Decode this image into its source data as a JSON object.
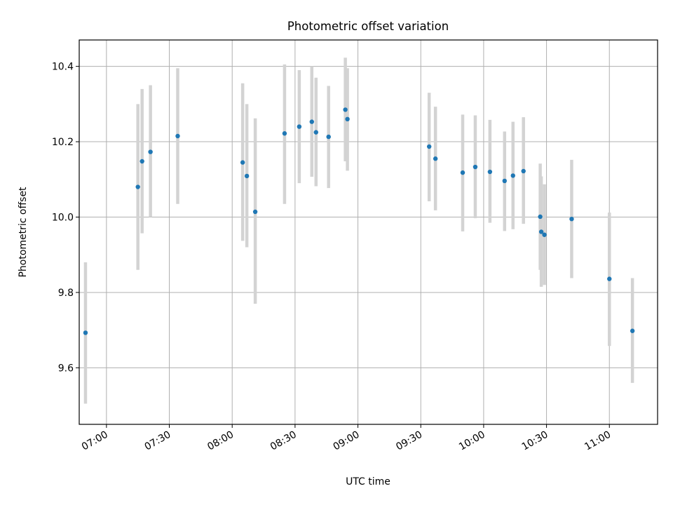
{
  "chart_data": {
    "type": "scatter",
    "title": "Photometric offset variation",
    "xlabel": "UTC time",
    "ylabel": "Photometric offset",
    "x_ticks": [
      "07:00",
      "07:30",
      "08:00",
      "08:30",
      "09:00",
      "09:30",
      "10:00",
      "10:30",
      "11:00"
    ],
    "y_ticks": [
      "9.6",
      "9.8",
      "10.0",
      "10.2",
      "10.4"
    ],
    "xlim": [
      "06:47",
      "11:23"
    ],
    "ylim": [
      9.45,
      10.47
    ],
    "grid": true,
    "colors": {
      "point": "#1f77b4",
      "errorbar": "#d3d3d3",
      "grid": "#b0b0b0"
    },
    "points": [
      {
        "x": "06:50",
        "y": 9.693,
        "ylo": 9.505,
        "yhi": 9.88
      },
      {
        "x": "07:15",
        "y": 10.08,
        "ylo": 9.86,
        "yhi": 10.3
      },
      {
        "x": "07:17",
        "y": 10.148,
        "ylo": 9.957,
        "yhi": 10.34
      },
      {
        "x": "07:21",
        "y": 10.173,
        "ylo": 10.0,
        "yhi": 10.35
      },
      {
        "x": "07:34",
        "y": 10.215,
        "ylo": 10.035,
        "yhi": 10.395
      },
      {
        "x": "08:05",
        "y": 10.145,
        "ylo": 9.937,
        "yhi": 10.355
      },
      {
        "x": "08:07",
        "y": 10.109,
        "ylo": 9.92,
        "yhi": 10.3
      },
      {
        "x": "08:11",
        "y": 10.014,
        "ylo": 9.77,
        "yhi": 10.262
      },
      {
        "x": "08:25",
        "y": 10.222,
        "ylo": 10.035,
        "yhi": 10.405
      },
      {
        "x": "08:32",
        "y": 10.24,
        "ylo": 10.09,
        "yhi": 10.39
      },
      {
        "x": "08:38",
        "y": 10.253,
        "ylo": 10.107,
        "yhi": 10.4
      },
      {
        "x": "08:40",
        "y": 10.225,
        "ylo": 10.082,
        "yhi": 10.37
      },
      {
        "x": "08:46",
        "y": 10.213,
        "ylo": 10.077,
        "yhi": 10.348
      },
      {
        "x": "08:54",
        "y": 10.285,
        "ylo": 10.148,
        "yhi": 10.423
      },
      {
        "x": "08:55",
        "y": 10.26,
        "ylo": 10.123,
        "yhi": 10.395
      },
      {
        "x": "09:34",
        "y": 10.187,
        "ylo": 10.042,
        "yhi": 10.33
      },
      {
        "x": "09:37",
        "y": 10.155,
        "ylo": 10.018,
        "yhi": 10.293
      },
      {
        "x": "09:50",
        "y": 10.118,
        "ylo": 9.962,
        "yhi": 10.272
      },
      {
        "x": "09:56",
        "y": 10.133,
        "ylo": 9.997,
        "yhi": 10.27
      },
      {
        "x": "10:03",
        "y": 10.12,
        "ylo": 9.985,
        "yhi": 10.258
      },
      {
        "x": "10:10",
        "y": 10.096,
        "ylo": 9.963,
        "yhi": 10.227
      },
      {
        "x": "10:14",
        "y": 10.11,
        "ylo": 9.968,
        "yhi": 10.253
      },
      {
        "x": "10:19",
        "y": 10.122,
        "ylo": 9.982,
        "yhi": 10.265
      },
      {
        "x": "10:27",
        "y": 10.001,
        "ylo": 9.86,
        "yhi": 10.142
      },
      {
        "x": "10:27:30",
        "y": 9.961,
        "ylo": 9.815,
        "yhi": 10.108
      },
      {
        "x": "10:29",
        "y": 9.953,
        "ylo": 9.82,
        "yhi": 10.087
      },
      {
        "x": "10:42",
        "y": 9.995,
        "ylo": 9.838,
        "yhi": 10.152
      },
      {
        "x": "11:00",
        "y": 9.836,
        "ylo": 9.658,
        "yhi": 10.012
      },
      {
        "x": "11:11",
        "y": 9.698,
        "ylo": 9.56,
        "yhi": 9.838
      }
    ]
  }
}
